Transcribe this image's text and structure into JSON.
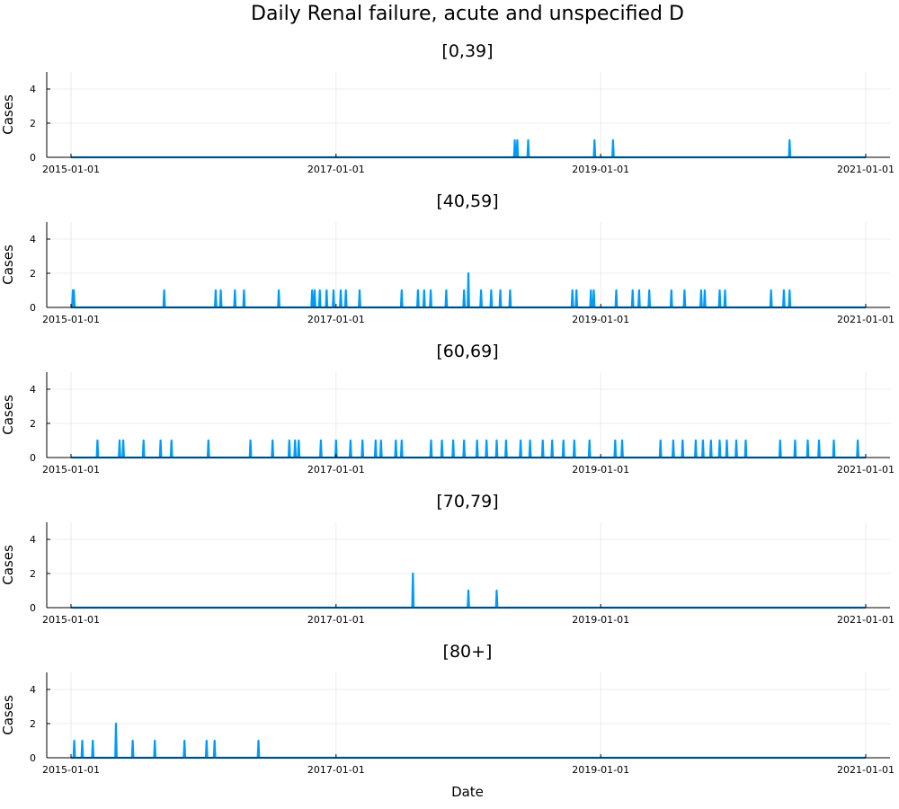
{
  "chart_data": {
    "title": "Daily Renal failure, acute and unspecified D",
    "xlabel": "Date",
    "ylabel": "Cases",
    "x_range": [
      "2015-01-01",
      "2021-01-01"
    ],
    "x_ticks": [
      "2015-01-01",
      "2017-01-01",
      "2019-01-01",
      "2021-01-01"
    ],
    "y_ticks": [
      0,
      2,
      4
    ],
    "ylim": [
      0,
      5
    ],
    "grid": true,
    "series_color": "#009AFA",
    "panels": [
      {
        "type": "line",
        "title": "[0,39]",
        "events": [
          {
            "date": "2018-05-09",
            "count": 1
          },
          {
            "date": "2018-05-16",
            "count": 1
          },
          {
            "date": "2018-06-15",
            "count": 1
          },
          {
            "date": "2018-12-15",
            "count": 1
          },
          {
            "date": "2019-02-04",
            "count": 1
          },
          {
            "date": "2020-06-05",
            "count": 1
          }
        ]
      },
      {
        "type": "line",
        "title": "[40,59]",
        "events": [
          {
            "date": "2015-01-06",
            "count": 1
          },
          {
            "date": "2015-01-09",
            "count": 1
          },
          {
            "date": "2015-09-15",
            "count": 1
          },
          {
            "date": "2016-02-04",
            "count": 1
          },
          {
            "date": "2016-02-18",
            "count": 1
          },
          {
            "date": "2016-03-28",
            "count": 1
          },
          {
            "date": "2016-04-22",
            "count": 1
          },
          {
            "date": "2016-07-27",
            "count": 1
          },
          {
            "date": "2016-10-27",
            "count": 1
          },
          {
            "date": "2016-11-03",
            "count": 1
          },
          {
            "date": "2016-11-17",
            "count": 1
          },
          {
            "date": "2016-12-06",
            "count": 1
          },
          {
            "date": "2016-12-25",
            "count": 1
          },
          {
            "date": "2017-01-14",
            "count": 1
          },
          {
            "date": "2017-01-28",
            "count": 1
          },
          {
            "date": "2017-03-07",
            "count": 1
          },
          {
            "date": "2017-07-01",
            "count": 1
          },
          {
            "date": "2017-08-15",
            "count": 1
          },
          {
            "date": "2017-09-01",
            "count": 1
          },
          {
            "date": "2017-09-19",
            "count": 1
          },
          {
            "date": "2017-11-01",
            "count": 1
          },
          {
            "date": "2017-12-20",
            "count": 1
          },
          {
            "date": "2018-01-01",
            "count": 2
          },
          {
            "date": "2018-02-05",
            "count": 1
          },
          {
            "date": "2018-03-05",
            "count": 1
          },
          {
            "date": "2018-03-30",
            "count": 1
          },
          {
            "date": "2018-04-26",
            "count": 1
          },
          {
            "date": "2018-10-15",
            "count": 1
          },
          {
            "date": "2018-10-26",
            "count": 1
          },
          {
            "date": "2018-12-05",
            "count": 1
          },
          {
            "date": "2018-12-13",
            "count": 1
          },
          {
            "date": "2019-02-13",
            "count": 1
          },
          {
            "date": "2019-03-30",
            "count": 1
          },
          {
            "date": "2019-04-17",
            "count": 1
          },
          {
            "date": "2019-05-15",
            "count": 1
          },
          {
            "date": "2019-07-15",
            "count": 1
          },
          {
            "date": "2019-08-20",
            "count": 1
          },
          {
            "date": "2019-10-05",
            "count": 1
          },
          {
            "date": "2019-10-15",
            "count": 1
          },
          {
            "date": "2019-11-25",
            "count": 1
          },
          {
            "date": "2019-12-10",
            "count": 1
          },
          {
            "date": "2020-04-15",
            "count": 1
          },
          {
            "date": "2020-05-20",
            "count": 1
          },
          {
            "date": "2020-06-05",
            "count": 1
          }
        ]
      },
      {
        "type": "line",
        "title": "[60,69]",
        "events": [
          {
            "date": "2015-03-15",
            "count": 1
          },
          {
            "date": "2015-05-15",
            "count": 1
          },
          {
            "date": "2015-05-25",
            "count": 1
          },
          {
            "date": "2015-07-20",
            "count": 1
          },
          {
            "date": "2015-09-05",
            "count": 1
          },
          {
            "date": "2015-10-05",
            "count": 1
          },
          {
            "date": "2016-01-15",
            "count": 1
          },
          {
            "date": "2016-05-10",
            "count": 1
          },
          {
            "date": "2016-07-10",
            "count": 1
          },
          {
            "date": "2016-08-25",
            "count": 1
          },
          {
            "date": "2016-09-10",
            "count": 1
          },
          {
            "date": "2016-09-20",
            "count": 1
          },
          {
            "date": "2016-11-20",
            "count": 1
          },
          {
            "date": "2017-01-01",
            "count": 1
          },
          {
            "date": "2017-02-10",
            "count": 1
          },
          {
            "date": "2017-03-15",
            "count": 1
          },
          {
            "date": "2017-04-20",
            "count": 1
          },
          {
            "date": "2017-05-05",
            "count": 1
          },
          {
            "date": "2017-06-15",
            "count": 1
          },
          {
            "date": "2017-07-01",
            "count": 1
          },
          {
            "date": "2017-09-20",
            "count": 1
          },
          {
            "date": "2017-10-20",
            "count": 1
          },
          {
            "date": "2017-11-20",
            "count": 1
          },
          {
            "date": "2017-12-20",
            "count": 1
          },
          {
            "date": "2018-01-25",
            "count": 1
          },
          {
            "date": "2018-02-20",
            "count": 1
          },
          {
            "date": "2018-03-20",
            "count": 1
          },
          {
            "date": "2018-04-15",
            "count": 1
          },
          {
            "date": "2018-05-25",
            "count": 1
          },
          {
            "date": "2018-06-20",
            "count": 1
          },
          {
            "date": "2018-07-25",
            "count": 1
          },
          {
            "date": "2018-08-20",
            "count": 1
          },
          {
            "date": "2018-09-20",
            "count": 1
          },
          {
            "date": "2018-10-20",
            "count": 1
          },
          {
            "date": "2018-12-01",
            "count": 1
          },
          {
            "date": "2019-02-10",
            "count": 1
          },
          {
            "date": "2019-03-01",
            "count": 1
          },
          {
            "date": "2019-06-15",
            "count": 1
          },
          {
            "date": "2019-07-20",
            "count": 1
          },
          {
            "date": "2019-08-15",
            "count": 1
          },
          {
            "date": "2019-09-20",
            "count": 1
          },
          {
            "date": "2019-10-10",
            "count": 1
          },
          {
            "date": "2019-11-01",
            "count": 1
          },
          {
            "date": "2019-11-25",
            "count": 1
          },
          {
            "date": "2019-12-15",
            "count": 1
          },
          {
            "date": "2020-01-10",
            "count": 1
          },
          {
            "date": "2020-02-05",
            "count": 1
          },
          {
            "date": "2020-05-10",
            "count": 1
          },
          {
            "date": "2020-06-20",
            "count": 1
          },
          {
            "date": "2020-07-25",
            "count": 1
          },
          {
            "date": "2020-08-25",
            "count": 1
          },
          {
            "date": "2020-10-05",
            "count": 1
          },
          {
            "date": "2020-12-10",
            "count": 1
          }
        ]
      },
      {
        "type": "line",
        "title": "[70,79]",
        "events": [
          {
            "date": "2017-08-01",
            "count": 2
          },
          {
            "date": "2018-01-01",
            "count": 1
          },
          {
            "date": "2018-03-20",
            "count": 1
          }
        ]
      },
      {
        "type": "line",
        "title": "[80+]",
        "events": [
          {
            "date": "2015-01-10",
            "count": 1
          },
          {
            "date": "2015-02-01",
            "count": 1
          },
          {
            "date": "2015-03-02",
            "count": 1
          },
          {
            "date": "2015-05-05",
            "count": 2
          },
          {
            "date": "2015-06-20",
            "count": 1
          },
          {
            "date": "2015-08-20",
            "count": 1
          },
          {
            "date": "2015-11-10",
            "count": 1
          },
          {
            "date": "2016-01-10",
            "count": 1
          },
          {
            "date": "2016-02-01",
            "count": 1
          },
          {
            "date": "2016-06-01",
            "count": 1
          }
        ]
      }
    ]
  }
}
